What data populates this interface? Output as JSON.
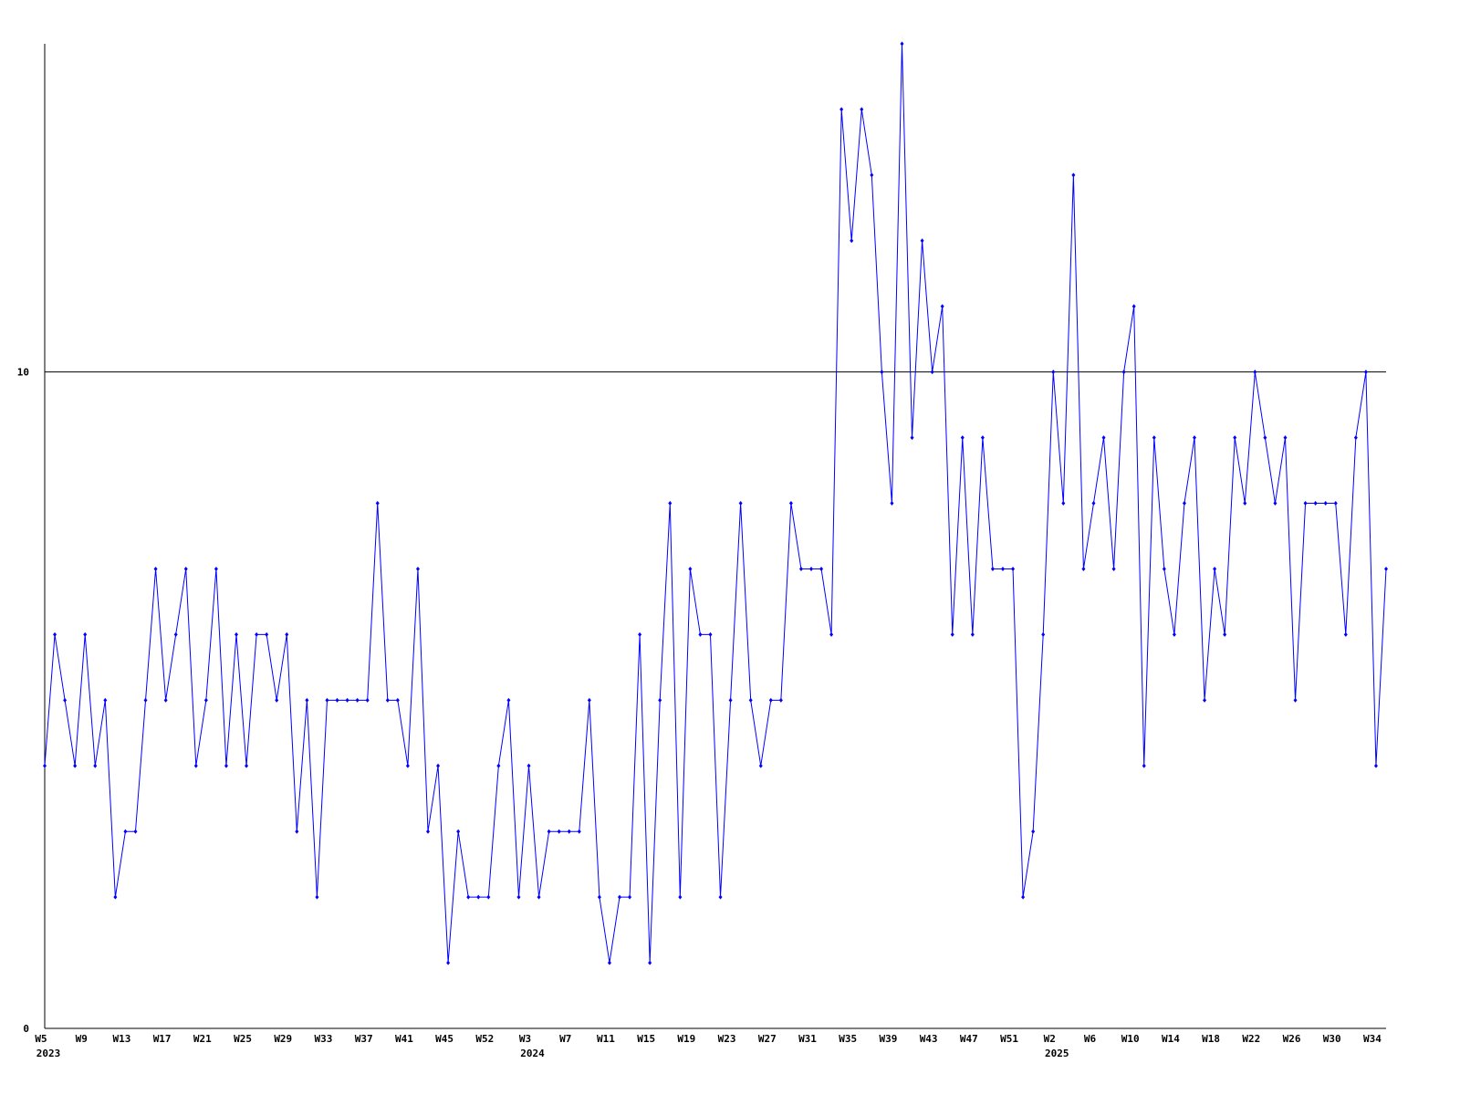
{
  "chart_data": {
    "type": "line",
    "categories": [
      "W5",
      null,
      null,
      null,
      "W9",
      null,
      null,
      null,
      "W13",
      null,
      null,
      null,
      "W17",
      null,
      null,
      null,
      "W21",
      null,
      null,
      null,
      "W25",
      null,
      null,
      null,
      "W29",
      null,
      null,
      null,
      "W33",
      null,
      null,
      null,
      "W37",
      null,
      null,
      null,
      "W41",
      null,
      null,
      null,
      "W45",
      null,
      null,
      null,
      "W52",
      null,
      null,
      null,
      "W3",
      null,
      null,
      null,
      "W7",
      null,
      null,
      null,
      "W11",
      null,
      null,
      null,
      "W15",
      null,
      null,
      null,
      "W19",
      null,
      null,
      null,
      "W23",
      null,
      null,
      null,
      "W27",
      null,
      null,
      null,
      "W31",
      null,
      null,
      null,
      "W35",
      null,
      null,
      null,
      "W39",
      null,
      null,
      null,
      "W43",
      null,
      null,
      null,
      "W47",
      null,
      null,
      null,
      "W51",
      null,
      null,
      null,
      "W2",
      null,
      null,
      null,
      "W6",
      null,
      null,
      null,
      "W10",
      null,
      null,
      null,
      "W14",
      null,
      null,
      null,
      "W18",
      null,
      null,
      null,
      "W22",
      null,
      null,
      null,
      "W26",
      null,
      null,
      null,
      "W30",
      null,
      null,
      null,
      "W34",
      null
    ],
    "year_labels": [
      "2023",
      null,
      null,
      null,
      null,
      null,
      null,
      null,
      null,
      null,
      null,
      null,
      null,
      null,
      null,
      null,
      null,
      null,
      null,
      null,
      null,
      null,
      null,
      null,
      null,
      null,
      null,
      null,
      null,
      null,
      null,
      null,
      null,
      null,
      null,
      null,
      null,
      null,
      null,
      null,
      null,
      null,
      null,
      null,
      null,
      null,
      null,
      null,
      "2024",
      null,
      null,
      null,
      null,
      null,
      null,
      null,
      null,
      null,
      null,
      null,
      null,
      null,
      null,
      null,
      null,
      null,
      null,
      null,
      null,
      null,
      null,
      null,
      null,
      null,
      null,
      null,
      null,
      null,
      null,
      null,
      null,
      null,
      null,
      null,
      null,
      null,
      null,
      null,
      null,
      null,
      null,
      null,
      null,
      null,
      null,
      null,
      null,
      null,
      null,
      null,
      "2025",
      null,
      null,
      null,
      null,
      null,
      null,
      null,
      null,
      null,
      null,
      null,
      null,
      null,
      null,
      null,
      null,
      null,
      null,
      null,
      null,
      null,
      null,
      null,
      null,
      null,
      null,
      null,
      null,
      null,
      null,
      null,
      null,
      null
    ],
    "values": [
      4,
      6,
      5,
      4,
      6,
      4,
      5,
      2,
      3,
      3,
      5,
      7,
      5,
      6,
      7,
      4,
      5,
      7,
      4,
      6,
      4,
      6,
      6,
      5,
      6,
      3,
      5,
      2,
      5,
      5,
      5,
      5,
      5,
      8,
      5,
      5,
      4,
      7,
      3,
      4,
      1,
      3,
      2,
      2,
      2,
      4,
      5,
      2,
      4,
      2,
      3,
      3,
      3,
      3,
      5,
      2,
      1,
      2,
      2,
      6,
      1,
      5,
      8,
      2,
      7,
      6,
      6,
      2,
      5,
      8,
      5,
      4,
      5,
      5,
      8,
      7,
      7,
      7,
      6,
      14,
      12,
      14,
      13,
      10,
      8,
      15,
      9,
      12,
      10,
      11,
      6,
      9,
      6,
      9,
      7,
      7,
      7,
      2,
      3,
      6,
      10,
      8,
      13,
      7,
      8,
      9,
      7,
      10,
      11,
      4,
      9,
      7,
      6,
      8,
      9,
      5,
      7,
      6,
      9,
      8,
      10,
      9,
      8,
      9,
      5,
      8,
      8,
      8,
      8,
      6,
      9,
      10,
      4,
      7
    ],
    "color": "#0000ff",
    "ylim": [
      0,
      15
    ],
    "yticks": [
      0,
      10
    ],
    "grid": true
  }
}
